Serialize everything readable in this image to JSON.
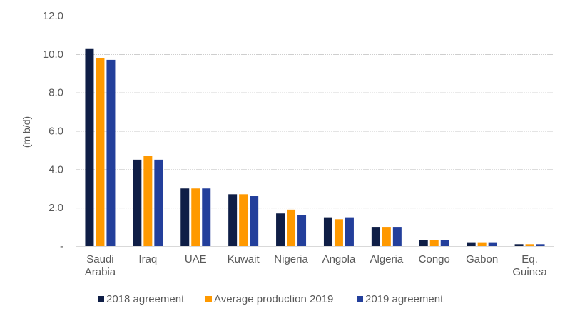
{
  "chart_data": {
    "type": "bar",
    "title": "",
    "xlabel": "",
    "ylabel": "(m b/d)",
    "ylim": [
      0,
      12
    ],
    "yticks": [
      0,
      2,
      4,
      6,
      8,
      10,
      12
    ],
    "ytick_labels": [
      "-",
      "2.0",
      "4.0",
      "6.0",
      "8.0",
      "10.0",
      "12.0"
    ],
    "grid": true,
    "legend_position": "bottom",
    "categories": [
      [
        "Saudi",
        "Arabia"
      ],
      [
        "Iraq"
      ],
      [
        "UAE"
      ],
      [
        "Kuwait"
      ],
      [
        "Nigeria"
      ],
      [
        "Angola"
      ],
      [
        "Algeria"
      ],
      [
        "Congo"
      ],
      [
        "Gabon"
      ],
      [
        "Eq.",
        "Guinea"
      ]
    ],
    "series": [
      {
        "name": "2018 agreement",
        "color": "#0F1E46",
        "values": [
          10.3,
          4.5,
          3.0,
          2.7,
          1.7,
          1.5,
          1.0,
          0.3,
          0.2,
          0.1
        ]
      },
      {
        "name": "Average production 2019",
        "color": "#FF9900",
        "values": [
          9.8,
          4.7,
          3.0,
          2.7,
          1.9,
          1.4,
          1.0,
          0.3,
          0.2,
          0.1
        ]
      },
      {
        "name": "2019 agreement",
        "color": "#233F9B",
        "values": [
          9.7,
          4.5,
          3.0,
          2.6,
          1.6,
          1.5,
          1.0,
          0.3,
          0.2,
          0.1
        ]
      }
    ]
  }
}
